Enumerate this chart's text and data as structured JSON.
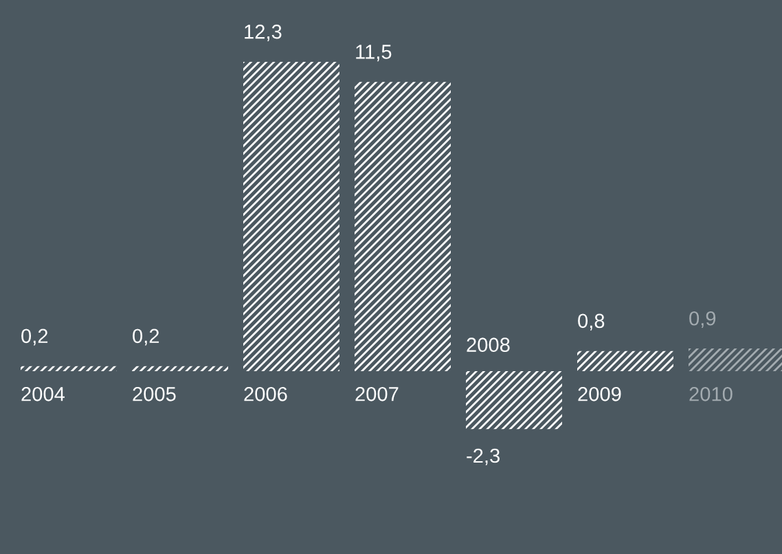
{
  "chart_data": {
    "type": "bar",
    "categories": [
      "2004",
      "2005",
      "2006",
      "2007",
      "2008",
      "2009",
      "2010"
    ],
    "values": [
      0.2,
      0.2,
      12.3,
      11.5,
      -2.3,
      0.8,
      0.9
    ],
    "colors": [
      "#ffffff",
      "#ffffff",
      "#ffffff",
      "#ffffff",
      "#ffffff",
      "#ffffff",
      "#a3abb0"
    ],
    "value_labels": [
      "0,2",
      "0,2",
      "12,3",
      "11,5",
      "-2,3",
      "0,8",
      "0,9"
    ]
  }
}
